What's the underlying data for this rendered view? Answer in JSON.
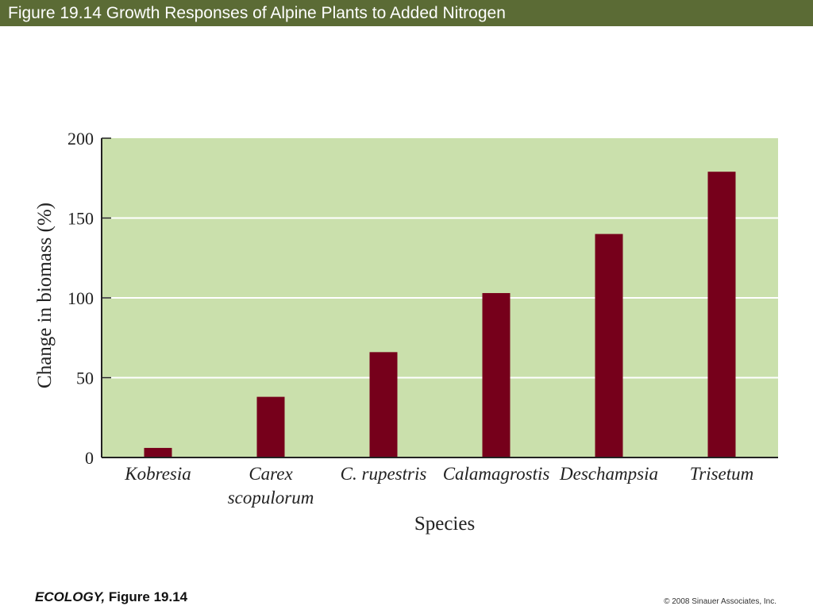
{
  "header": {
    "title": "Figure 19.14  Growth Responses of Alpine Plants to Added Nitrogen"
  },
  "footer": {
    "book": "ECOLOGY,",
    "figure": " Figure 19.14",
    "copyright": "© 2008 Sinauer Associates, Inc."
  },
  "colors": {
    "header_bg": "#5b6b35",
    "plot_bg": "#cae0ac",
    "bar": "#76001b"
  },
  "chart_data": {
    "type": "bar",
    "title": "",
    "xlabel": "Species",
    "ylabel": "Change in biomass (%)",
    "ylim": [
      0,
      200
    ],
    "yticks": [
      0,
      50,
      100,
      150,
      200
    ],
    "grid": true,
    "categories": [
      [
        "Kobresia"
      ],
      [
        "Carex",
        "scopulorum"
      ],
      [
        "C. rupestris"
      ],
      [
        "Calamagrostis"
      ],
      [
        "Deschampsia"
      ],
      [
        "Trisetum"
      ]
    ],
    "values": [
      6,
      38,
      66,
      103,
      140,
      179
    ]
  }
}
